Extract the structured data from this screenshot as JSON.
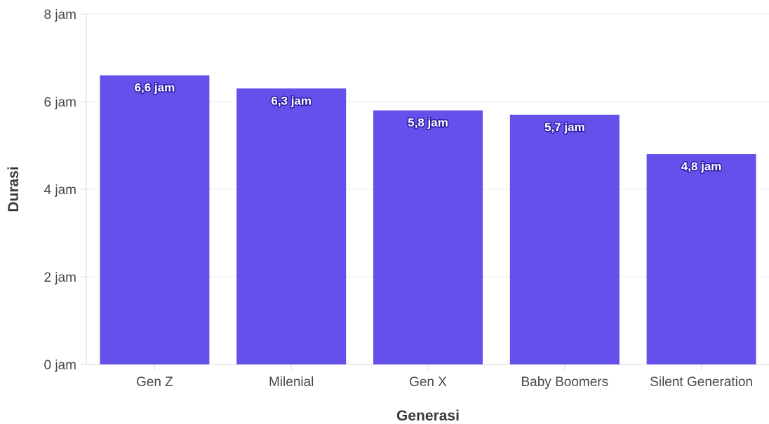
{
  "chart_data": {
    "type": "bar",
    "categories": [
      "Gen Z",
      "Milenial",
      "Gen X",
      "Baby Boomers",
      "Silent Generation"
    ],
    "values": [
      6.6,
      6.3,
      5.8,
      5.7,
      4.8
    ],
    "data_labels": [
      "6,6 jam",
      "6,3 jam",
      "5,8 jam",
      "5,7 jam",
      "4,8 jam"
    ],
    "xlabel": "Generasi",
    "ylabel": "Durasi",
    "ylim": [
      0,
      8
    ],
    "yticks": [
      0,
      2,
      4,
      6,
      8
    ],
    "ytick_labels": [
      "0 jam",
      "2 jam",
      "4 jam",
      "6 jam",
      "8 jam"
    ],
    "bar_color": "#6450eb",
    "grid": true
  }
}
